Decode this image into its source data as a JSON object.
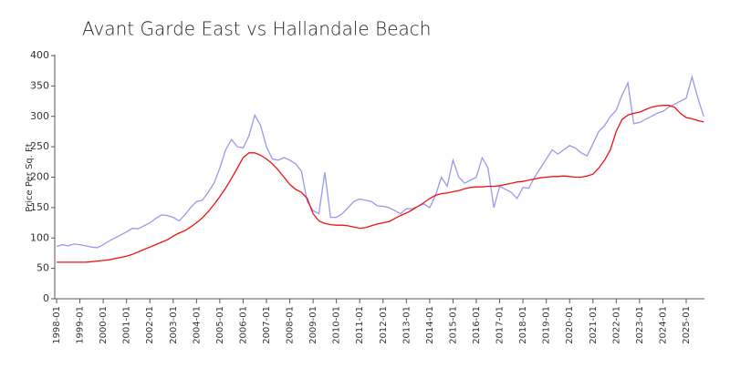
{
  "chart_data": {
    "type": "line",
    "title": "Avant Garde East vs Hallandale Beach",
    "y_label": "Price Per Sq. Ft",
    "x": [
      "1998-01",
      "1998-04",
      "1998-07",
      "1998-10",
      "1999-01",
      "1999-04",
      "1999-07",
      "1999-10",
      "2000-01",
      "2000-04",
      "2000-07",
      "2000-10",
      "2001-01",
      "2001-04",
      "2001-07",
      "2001-10",
      "2002-01",
      "2002-04",
      "2002-07",
      "2002-10",
      "2003-01",
      "2003-04",
      "2003-07",
      "2003-10",
      "2004-01",
      "2004-04",
      "2004-07",
      "2004-10",
      "2005-01",
      "2005-04",
      "2005-07",
      "2005-10",
      "2006-01",
      "2006-04",
      "2006-07",
      "2006-10",
      "2007-01",
      "2007-04",
      "2007-07",
      "2007-10",
      "2008-01",
      "2008-04",
      "2008-07",
      "2008-10",
      "2009-01",
      "2009-04",
      "2009-07",
      "2009-10",
      "2010-01",
      "2010-04",
      "2010-07",
      "2010-10",
      "2011-01",
      "2011-04",
      "2011-07",
      "2011-10",
      "2012-01",
      "2012-04",
      "2012-07",
      "2012-10",
      "2013-01",
      "2013-04",
      "2013-07",
      "2013-10",
      "2014-01",
      "2014-04",
      "2014-07",
      "2014-10",
      "2015-01",
      "2015-04",
      "2015-07",
      "2015-10",
      "2016-01",
      "2016-04",
      "2016-07",
      "2016-10",
      "2017-01",
      "2017-04",
      "2017-07",
      "2017-10",
      "2018-01",
      "2018-04",
      "2018-07",
      "2018-10",
      "2019-01",
      "2019-04",
      "2019-07",
      "2019-10",
      "2020-01",
      "2020-04",
      "2020-07",
      "2020-10",
      "2021-01",
      "2021-04",
      "2021-07",
      "2021-10",
      "2022-01",
      "2022-04",
      "2022-07",
      "2022-10",
      "2023-01",
      "2023-04",
      "2023-07",
      "2023-10",
      "2024-01",
      "2024-04",
      "2024-07",
      "2024-10",
      "2025-01",
      "2025-04",
      "2025-07",
      "2025-10"
    ],
    "xticks": [
      "1998-01",
      "1999-01",
      "2000-01",
      "2001-01",
      "2002-01",
      "2003-01",
      "2004-01",
      "2005-01",
      "2006-01",
      "2007-01",
      "2008-01",
      "2009-01",
      "2010-01",
      "2011-01",
      "2012-01",
      "2013-01",
      "2014-01",
      "2015-01",
      "2016-01",
      "2017-01",
      "2018-01",
      "2019-01",
      "2020-01",
      "2021-01",
      "2022-01",
      "2023-01",
      "2024-01",
      "2025-01"
    ],
    "series": [
      {
        "color": "#9999ee",
        "values": [
          86,
          89,
          87,
          90,
          89,
          87,
          85,
          84,
          89,
          95,
          100,
          105,
          110,
          116,
          115,
          120,
          125,
          132,
          138,
          137,
          134,
          128,
          138,
          150,
          160,
          162,
          175,
          190,
          215,
          245,
          262,
          250,
          248,
          268,
          302,
          285,
          250,
          230,
          228,
          232,
          228,
          222,
          210,
          160,
          145,
          140,
          208,
          134,
          134,
          140,
          150,
          160,
          164,
          162,
          160,
          153,
          152,
          150,
          145,
          140,
          148,
          148,
          152,
          156,
          150,
          170,
          200,
          185,
          228,
          200,
          190,
          195,
          200,
          232,
          215,
          150,
          185,
          180,
          175,
          165,
          183,
          182,
          200,
          215,
          230,
          245,
          238,
          245,
          252,
          248,
          240,
          235,
          255,
          275,
          285,
          300,
          310,
          335,
          355,
          288,
          290,
          295,
          300,
          305,
          308,
          315,
          320,
          325,
          330,
          365,
          330,
          300
        ]
      },
      {
        "color": "#ee1111",
        "values": [
          60,
          60,
          60,
          60,
          60,
          60,
          61,
          62,
          63,
          64,
          66,
          68,
          70,
          73,
          77,
          81,
          85,
          89,
          93,
          97,
          103,
          108,
          112,
          118,
          125,
          133,
          143,
          155,
          168,
          182,
          198,
          215,
          232,
          240,
          240,
          236,
          230,
          222,
          212,
          200,
          188,
          180,
          175,
          165,
          140,
          128,
          124,
          122,
          121,
          121,
          120,
          118,
          116,
          117,
          120,
          123,
          125,
          127,
          132,
          137,
          141,
          146,
          152,
          158,
          165,
          170,
          173,
          174,
          176,
          178,
          181,
          183,
          184,
          184,
          185,
          185,
          186,
          188,
          190,
          192,
          193,
          195,
          197,
          199,
          200,
          201,
          201,
          202,
          201,
          200,
          200,
          202,
          205,
          215,
          228,
          245,
          275,
          295,
          302,
          305,
          307,
          311,
          315,
          317,
          318,
          318,
          315,
          305,
          298,
          296,
          293,
          291
        ]
      }
    ],
    "ylim": [
      0,
      400
    ],
    "yticks": [
      0,
      50,
      100,
      150,
      200,
      250,
      300,
      350,
      400
    ]
  }
}
